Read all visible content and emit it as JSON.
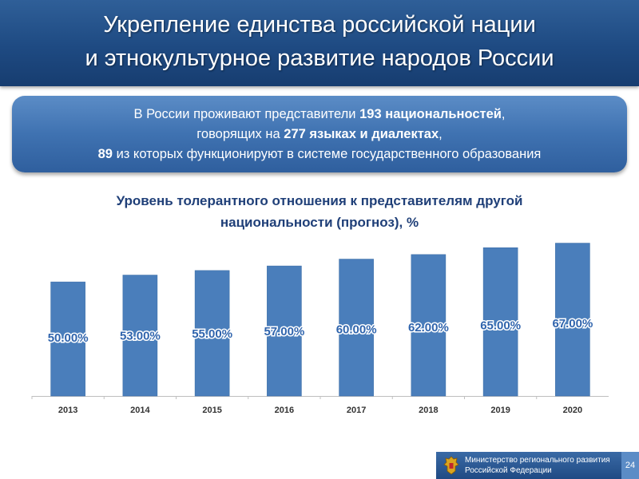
{
  "header": {
    "title_line1": "Укрепление единства российской нации",
    "title_line2": "и этнокультурное развитие народов России"
  },
  "info": {
    "line1_pre": "В России проживают представители ",
    "line1_bold": "193 национальностей",
    "line1_post": ",",
    "line2_pre": "говорящих на ",
    "line2_bold": "277 языках и диалектах",
    "line2_post": ",",
    "line3_bold": "89",
    "line3_post": " из которых функционируют в системе государственного образования"
  },
  "chart_data": {
    "type": "bar",
    "title": "Уровень толерантного отношения к представителям другой национальности (прогноз), %",
    "title_line1": "Уровень толерантного отношения к представителям другой",
    "title_line2": "национальности (прогноз), %",
    "categories": [
      "2013",
      "2014",
      "2015",
      "2016",
      "2017",
      "2018",
      "2019",
      "2020"
    ],
    "values": [
      50,
      53,
      55,
      57,
      60,
      62,
      65,
      67
    ],
    "data_labels": [
      "50.00%",
      "53.00%",
      "55.00%",
      "57.00%",
      "60.00%",
      "62.00%",
      "65.00%",
      "67.00%"
    ],
    "ylim": [
      0,
      70
    ],
    "grid": false,
    "legend": "none",
    "bar_color": "#4a7ebb"
  },
  "footer": {
    "ministry_line1": "Министерство регионального развития",
    "ministry_line2": "Российской Федерации",
    "page_number": "24"
  }
}
